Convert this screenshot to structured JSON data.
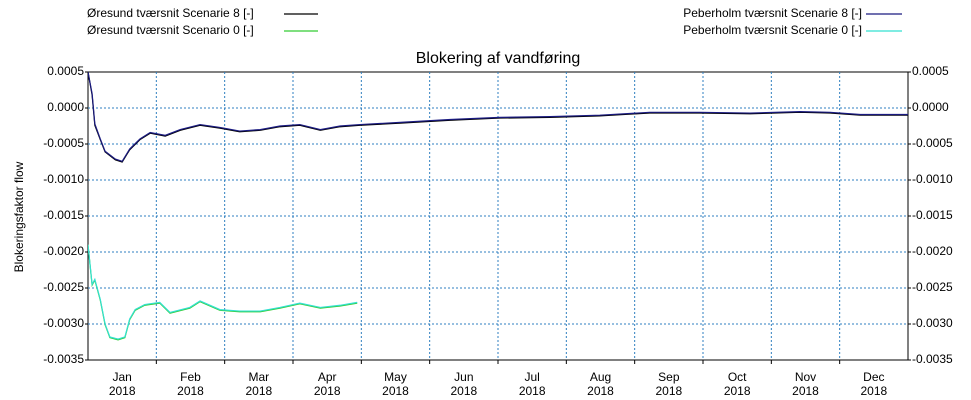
{
  "chart_data": {
    "type": "line",
    "title": "Blokering af vandføring",
    "ylabel": "Blokeringsfaktor flow",
    "grid": true,
    "xlim": [
      1,
      13
    ],
    "xticks": [
      {
        "value": 1.5,
        "label": "Jan\n2018"
      },
      {
        "value": 2.5,
        "label": "Feb\n2018"
      },
      {
        "value": 3.5,
        "label": "Mar\n2018"
      },
      {
        "value": 4.5,
        "label": "Apr\n2018"
      },
      {
        "value": 5.5,
        "label": "May\n2018"
      },
      {
        "value": 6.5,
        "label": "Jun\n2018"
      },
      {
        "value": 7.5,
        "label": "Jul\n2018"
      },
      {
        "value": 8.5,
        "label": "Aug\n2018"
      },
      {
        "value": 9.5,
        "label": "Sep\n2018"
      },
      {
        "value": 10.5,
        "label": "Oct\n2018"
      },
      {
        "value": 11.5,
        "label": "Nov\n2018"
      },
      {
        "value": 12.5,
        "label": "Dec\n2018"
      }
    ],
    "xgrid": [
      2,
      3,
      4,
      5,
      6,
      7,
      8,
      9,
      10,
      11,
      12
    ],
    "ylim": [
      -0.0035,
      0.0005
    ],
    "yticks": [
      {
        "value": 0.0005,
        "label": "0.0005"
      },
      {
        "value": 0,
        "label": "0.0000"
      },
      {
        "value": -0.0005,
        "label": "-0.0005"
      },
      {
        "value": -0.001,
        "label": "-0.0010"
      },
      {
        "value": -0.0015,
        "label": "-0.0015"
      },
      {
        "value": -0.002,
        "label": "-0.0020"
      },
      {
        "value": -0.0025,
        "label": "-0.0025"
      },
      {
        "value": -0.003,
        "label": "-0.0030"
      },
      {
        "value": -0.0035,
        "label": "-0.0035"
      }
    ],
    "y2lim": [
      -0.0035,
      0.0005
    ],
    "y2ticks": [
      {
        "value": 0.0005,
        "label": "0.0005"
      },
      {
        "value": 0,
        "label": "0.0000"
      },
      {
        "value": -0.0005,
        "label": "-0.0005"
      },
      {
        "value": -0.001,
        "label": "-0.0010"
      },
      {
        "value": -0.0015,
        "label": "-0.0015"
      },
      {
        "value": -0.002,
        "label": "-0.0020"
      },
      {
        "value": -0.0025,
        "label": "-0.0025"
      },
      {
        "value": -0.003,
        "label": "-0.0030"
      },
      {
        "value": -0.0035,
        "label": "-0.0035"
      }
    ],
    "series": [
      {
        "name": "Øresund tværsnit Scenarie 8 [-]",
        "color": "#000000",
        "legend": "left",
        "x": [
          1.0,
          1.06,
          1.1,
          1.18,
          1.25,
          1.4,
          1.5,
          1.61,
          1.76,
          1.91,
          2.13,
          2.35,
          2.64,
          2.93,
          3.22,
          3.52,
          3.81,
          4.1,
          4.4,
          4.69,
          4.98,
          5.57,
          6.3,
          7.03,
          7.76,
          8.49,
          9.22,
          9.95,
          10.69,
          11.42,
          11.86,
          12.3,
          13.0
        ],
        "values": [
          0.0005,
          0.00018,
          -0.00024,
          -0.00044,
          -0.00061,
          -0.00072,
          -0.00075,
          -0.00058,
          -0.00044,
          -0.00035,
          -0.00039,
          -0.00031,
          -0.00024,
          -0.00028,
          -0.00033,
          -0.00031,
          -0.00026,
          -0.00024,
          -0.00031,
          -0.00026,
          -0.00024,
          -0.00021,
          -0.00017,
          -0.00014,
          -0.00013,
          -0.00011,
          -7e-05,
          -7e-05,
          -8e-05,
          -6e-05,
          -7e-05,
          -0.0001,
          -0.0001
        ]
      },
      {
        "name": "Øresund tværsnit Scenario 0 [-]",
        "color": "#33cc33",
        "legend": "left",
        "x": [
          1.0,
          1.06,
          1.1,
          1.18,
          1.25,
          1.32,
          1.44,
          1.54,
          1.61,
          1.69,
          1.83,
          2.05,
          2.2,
          2.49,
          2.64,
          2.93,
          3.22,
          3.52,
          3.81,
          4.1,
          4.4,
          4.69,
          4.94
        ],
        "values": [
          -0.0019,
          -0.00246,
          -0.00239,
          -0.00267,
          -0.00301,
          -0.00319,
          -0.00322,
          -0.00319,
          -0.00294,
          -0.00281,
          -0.00274,
          -0.00271,
          -0.00285,
          -0.00278,
          -0.00269,
          -0.00281,
          -0.00283,
          -0.00283,
          -0.00278,
          -0.00272,
          -0.00278,
          -0.00275,
          -0.00271
        ]
      },
      {
        "name": "Peberholm tværsnit Scenarie 8  [-]",
        "color": "#1a1a80",
        "legend": "right",
        "x": [
          1.0,
          1.06,
          1.1,
          1.18,
          1.25,
          1.4,
          1.5,
          1.61,
          1.76,
          1.91,
          2.13,
          2.35,
          2.64,
          2.93,
          3.22,
          3.52,
          3.81,
          4.1,
          4.4,
          4.69,
          4.98,
          5.57,
          6.3,
          7.03,
          7.76,
          8.49,
          9.22,
          9.95,
          10.69,
          11.42,
          11.86,
          12.3,
          13.0
        ],
        "values": [
          0.0005,
          0.0002,
          -0.00022,
          -0.00043,
          -0.0006,
          -0.00071,
          -0.00074,
          -0.00057,
          -0.00043,
          -0.00034,
          -0.00038,
          -0.0003,
          -0.00023,
          -0.00027,
          -0.00032,
          -0.0003,
          -0.00025,
          -0.00023,
          -0.0003,
          -0.00025,
          -0.00023,
          -0.0002,
          -0.00016,
          -0.00013,
          -0.00012,
          -0.0001,
          -6e-05,
          -6e-05,
          -7e-05,
          -5e-05,
          -6e-05,
          -9e-05,
          -9e-05
        ]
      },
      {
        "name": "Peberholm tværsnit Scenarie 0  [-]",
        "color": "#33e0d0",
        "legend": "right",
        "x": [
          1.0,
          1.06,
          1.1,
          1.18,
          1.25,
          1.32,
          1.44,
          1.54,
          1.61,
          1.69,
          1.83,
          2.05,
          2.2,
          2.49,
          2.64,
          2.93,
          3.22,
          3.52,
          3.81,
          4.1,
          4.4,
          4.69,
          4.94
        ],
        "values": [
          -0.0019,
          -0.00245,
          -0.00238,
          -0.00266,
          -0.003,
          -0.00318,
          -0.00321,
          -0.00318,
          -0.00293,
          -0.0028,
          -0.00273,
          -0.0027,
          -0.00284,
          -0.00277,
          -0.00268,
          -0.0028,
          -0.00282,
          -0.00282,
          -0.00277,
          -0.00271,
          -0.00277,
          -0.00274,
          -0.0027
        ]
      }
    ]
  }
}
